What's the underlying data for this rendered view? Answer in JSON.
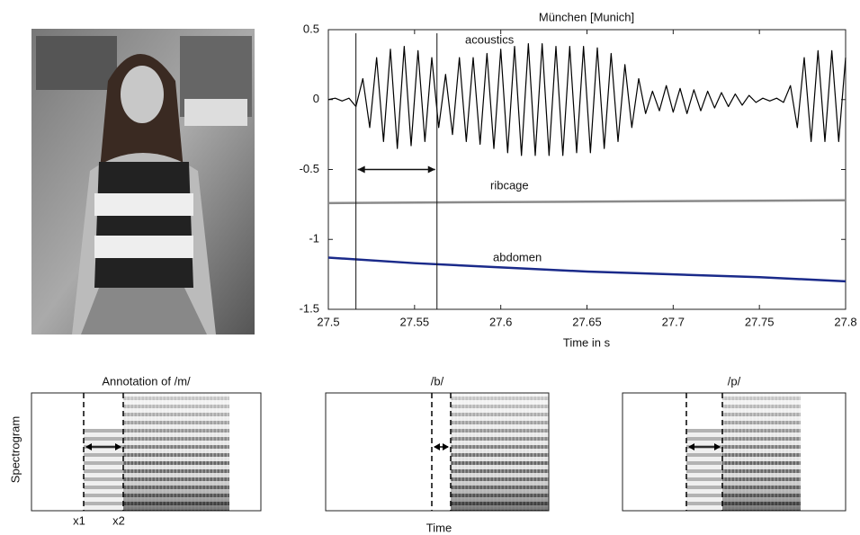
{
  "chart_data": {
    "type": "line",
    "title": "München [Munich]",
    "xlabel": "Time in s",
    "xlim": [
      27.5,
      27.8
    ],
    "xticks": [
      27.5,
      27.55,
      27.6,
      27.65,
      27.7,
      27.75,
      27.8
    ],
    "ylim": [
      -1.5,
      0.5
    ],
    "yticks": [
      0.5,
      0,
      -0.5,
      -1,
      -1.5
    ],
    "markers_x": [
      27.516,
      27.563
    ],
    "arrow_y": -0.5,
    "series": [
      {
        "name": "acoustics",
        "color": "#000000",
        "x": [
          27.5,
          27.504,
          27.508,
          27.512,
          27.516,
          27.52,
          27.524,
          27.528,
          27.532,
          27.536,
          27.54,
          27.544,
          27.548,
          27.552,
          27.556,
          27.56,
          27.564,
          27.568,
          27.572,
          27.576,
          27.58,
          27.584,
          27.588,
          27.592,
          27.596,
          27.6,
          27.604,
          27.608,
          27.612,
          27.616,
          27.62,
          27.624,
          27.628,
          27.632,
          27.636,
          27.64,
          27.644,
          27.648,
          27.652,
          27.656,
          27.66,
          27.664,
          27.668,
          27.672,
          27.676,
          27.68,
          27.684,
          27.688,
          27.692,
          27.696,
          27.7,
          27.704,
          27.708,
          27.712,
          27.716,
          27.72,
          27.724,
          27.728,
          27.732,
          27.736,
          27.74,
          27.744,
          27.748,
          27.752,
          27.756,
          27.76,
          27.764,
          27.768,
          27.772,
          27.776,
          27.78,
          27.784,
          27.788,
          27.792,
          27.796,
          27.8
        ],
        "values": [
          0,
          0.01,
          -0.01,
          0.01,
          -0.05,
          0.15,
          -0.2,
          0.3,
          -0.3,
          0.36,
          -0.35,
          0.38,
          -0.33,
          0.35,
          -0.3,
          0.3,
          -0.2,
          0.18,
          -0.25,
          0.3,
          -0.3,
          0.3,
          -0.32,
          0.33,
          -0.35,
          0.36,
          -0.38,
          0.38,
          -0.4,
          0.4,
          -0.4,
          0.4,
          -0.4,
          0.38,
          -0.4,
          0.38,
          -0.38,
          0.38,
          -0.38,
          0.37,
          -0.35,
          0.33,
          -0.3,
          0.25,
          -0.2,
          0.15,
          -0.1,
          0.06,
          -0.08,
          0.1,
          -0.09,
          0.08,
          -0.1,
          0.07,
          -0.08,
          0.06,
          -0.06,
          0.05,
          -0.05,
          0.04,
          -0.04,
          0.03,
          -0.02,
          0.01,
          -0.01,
          0.01,
          -0.02,
          0.1,
          -0.2,
          0.3,
          -0.3,
          0.35,
          -0.3,
          0.35,
          -0.3,
          0.3
        ]
      },
      {
        "name": "ribcage",
        "color": "#8a8a8a",
        "x": [
          27.5,
          27.65,
          27.8
        ],
        "values": [
          -0.74,
          -0.73,
          -0.72
        ]
      },
      {
        "name": "abdomen",
        "color": "#1a2a8a",
        "x": [
          27.5,
          27.55,
          27.6,
          27.65,
          27.7,
          27.75,
          27.8
        ],
        "values": [
          -1.13,
          -1.17,
          -1.2,
          -1.23,
          -1.25,
          -1.27,
          -1.3
        ]
      }
    ]
  },
  "spectrograms": {
    "ylabel": "Spectrogram",
    "xlabel": "Time",
    "panels": [
      {
        "title": "Annotation of /m/",
        "markers": [
          "x1",
          "x2"
        ]
      },
      {
        "title": "/b/"
      },
      {
        "title": "/p/"
      }
    ]
  }
}
